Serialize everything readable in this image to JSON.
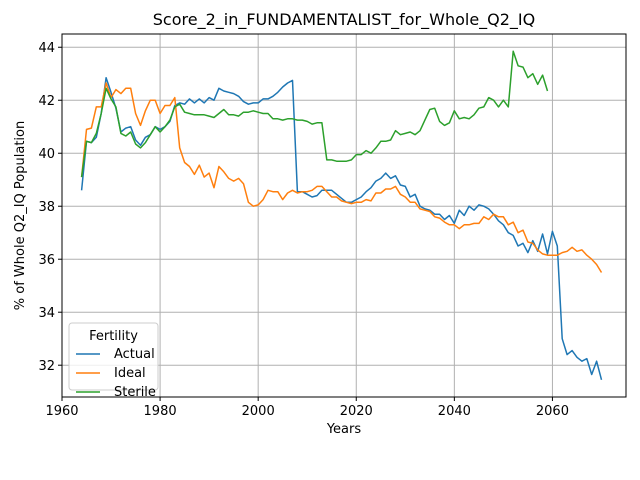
{
  "chart_data": {
    "type": "line",
    "title": "Score_2_in_FUNDAMENTALIST_for_Whole_Q2_IQ",
    "xlabel": "Years",
    "ylabel": "% of Whole Q2_IQ Population",
    "xlim": [
      1960,
      2075
    ],
    "ylim": [
      30.8,
      44.5
    ],
    "xticks": [
      1960,
      1980,
      2000,
      2020,
      2040,
      2060
    ],
    "yticks": [
      32,
      34,
      36,
      38,
      40,
      42,
      44
    ],
    "grid": true,
    "legend": {
      "title": "Fertility",
      "position": "lower-left"
    },
    "series": [
      {
        "name": "Actual",
        "color": "#1f77b4",
        "x": [
          1964,
          1965,
          1966,
          1967,
          1968,
          1969,
          1970,
          1971,
          1972,
          1973,
          1974,
          1975,
          1976,
          1977,
          1978,
          1979,
          1980,
          1981,
          1982,
          1983,
          1984,
          1985,
          1986,
          1987,
          1988,
          1989,
          1990,
          1991,
          1992,
          1993,
          1994,
          1995,
          1996,
          1997,
          1998,
          1999,
          2000,
          2001,
          2002,
          2003,
          2004,
          2005,
          2006,
          2007,
          2008,
          2009,
          2010,
          2011,
          2012,
          2013,
          2014,
          2015,
          2016,
          2017,
          2018,
          2019,
          2020,
          2021,
          2022,
          2023,
          2024,
          2025,
          2026,
          2027,
          2028,
          2029,
          2030,
          2031,
          2032,
          2033,
          2034,
          2035,
          2036,
          2037,
          2038,
          2039,
          2040,
          2041,
          2042,
          2043,
          2044,
          2045,
          2046,
          2047,
          2048,
          2049,
          2050,
          2051,
          2052,
          2053,
          2054,
          2055,
          2056,
          2057,
          2058,
          2059,
          2060,
          2061,
          2062,
          2063,
          2064,
          2065,
          2066,
          2067,
          2068,
          2069,
          2070
        ],
        "y": [
          38.6,
          40.45,
          40.4,
          40.6,
          41.5,
          42.85,
          42.3,
          41.7,
          40.8,
          40.95,
          41.0,
          40.5,
          40.3,
          40.6,
          40.7,
          41.0,
          40.9,
          41.0,
          41.2,
          41.8,
          41.9,
          41.85,
          42.05,
          41.9,
          42.05,
          41.9,
          42.1,
          42.0,
          42.45,
          42.35,
          42.3,
          42.25,
          42.15,
          41.95,
          41.85,
          41.9,
          41.9,
          42.05,
          42.05,
          42.15,
          42.3,
          42.5,
          42.65,
          42.75,
          38.55,
          38.55,
          38.45,
          38.35,
          38.4,
          38.6,
          38.6,
          38.6,
          38.45,
          38.3,
          38.15,
          38.15,
          38.25,
          38.35,
          38.55,
          38.7,
          38.95,
          39.05,
          39.25,
          39.05,
          39.15,
          38.8,
          38.75,
          38.35,
          38.45,
          38.0,
          37.9,
          37.85,
          37.7,
          37.7,
          37.5,
          37.65,
          37.35,
          37.85,
          37.65,
          38.0,
          37.85,
          38.05,
          38.0,
          37.9,
          37.7,
          37.45,
          37.3,
          37.0,
          36.9,
          36.5,
          36.6,
          36.25,
          36.7,
          36.3,
          36.95,
          36.2,
          37.05,
          36.5,
          33.0,
          32.4,
          32.55,
          32.3,
          32.15,
          32.25,
          31.65,
          32.15,
          31.45
        ]
      },
      {
        "name": "Ideal",
        "color": "#ff7f0e",
        "x": [
          1964,
          1965,
          1966,
          1967,
          1968,
          1969,
          1970,
          1971,
          1972,
          1973,
          1974,
          1975,
          1976,
          1977,
          1978,
          1979,
          1980,
          1981,
          1982,
          1983,
          1984,
          1985,
          1986,
          1987,
          1988,
          1989,
          1990,
          1991,
          1992,
          1993,
          1994,
          1995,
          1996,
          1997,
          1998,
          1999,
          2000,
          2001,
          2002,
          2003,
          2004,
          2005,
          2006,
          2007,
          2008,
          2009,
          2010,
          2011,
          2012,
          2013,
          2014,
          2015,
          2016,
          2017,
          2018,
          2019,
          2020,
          2021,
          2022,
          2023,
          2024,
          2025,
          2026,
          2027,
          2028,
          2029,
          2030,
          2031,
          2032,
          2033,
          2034,
          2035,
          2036,
          2037,
          2038,
          2039,
          2040,
          2041,
          2042,
          2043,
          2044,
          2045,
          2046,
          2047,
          2048,
          2049,
          2050,
          2051,
          2052,
          2053,
          2054,
          2055,
          2056,
          2057,
          2058,
          2059,
          2060,
          2061,
          2062,
          2063,
          2064,
          2065,
          2066,
          2067,
          2068,
          2069,
          2070
        ],
        "y": [
          39.1,
          40.9,
          40.95,
          41.75,
          41.75,
          42.65,
          42.1,
          42.4,
          42.25,
          42.45,
          42.45,
          41.5,
          41.05,
          41.6,
          42.0,
          42.0,
          41.5,
          41.8,
          41.8,
          42.1,
          40.2,
          39.65,
          39.5,
          39.2,
          39.55,
          39.1,
          39.25,
          38.7,
          39.5,
          39.3,
          39.05,
          38.95,
          39.05,
          38.85,
          38.15,
          38.0,
          38.05,
          38.25,
          38.6,
          38.55,
          38.55,
          38.25,
          38.5,
          38.6,
          38.5,
          38.55,
          38.55,
          38.6,
          38.75,
          38.75,
          38.55,
          38.35,
          38.35,
          38.2,
          38.15,
          38.1,
          38.15,
          38.15,
          38.25,
          38.2,
          38.5,
          38.5,
          38.65,
          38.65,
          38.75,
          38.45,
          38.35,
          38.15,
          38.15,
          37.9,
          37.85,
          37.8,
          37.6,
          37.55,
          37.4,
          37.3,
          37.3,
          37.15,
          37.3,
          37.3,
          37.35,
          37.35,
          37.6,
          37.5,
          37.7,
          37.6,
          37.6,
          37.3,
          37.4,
          37.0,
          37.1,
          36.65,
          36.6,
          36.35,
          36.2,
          36.15,
          36.15,
          36.15,
          36.25,
          36.3,
          36.45,
          36.3,
          36.35,
          36.15,
          36.0,
          35.8,
          35.5
        ]
      },
      {
        "name": "Sterile",
        "color": "#2ca02c",
        "x": [
          1964,
          1965,
          1966,
          1967,
          1968,
          1969,
          1970,
          1971,
          1972,
          1973,
          1974,
          1975,
          1976,
          1977,
          1978,
          1979,
          1980,
          1981,
          1982,
          1983,
          1984,
          1985,
          1986,
          1987,
          1988,
          1989,
          1990,
          1991,
          1992,
          1993,
          1994,
          1995,
          1996,
          1997,
          1998,
          1999,
          2000,
          2001,
          2002,
          2003,
          2004,
          2005,
          2006,
          2007,
          2008,
          2009,
          2010,
          2011,
          2012,
          2013,
          2014,
          2015,
          2016,
          2017,
          2018,
          2019,
          2020,
          2021,
          2022,
          2023,
          2024,
          2025,
          2026,
          2027,
          2028,
          2029,
          2030,
          2031,
          2032,
          2033,
          2034,
          2035,
          2036,
          2037,
          2038,
          2039,
          2040,
          2041,
          2042,
          2043,
          2044,
          2045,
          2046,
          2047,
          2048,
          2049,
          2050,
          2051,
          2052,
          2053,
          2054,
          2055,
          2056,
          2057,
          2058,
          2059
        ],
        "y": [
          39.1,
          40.45,
          40.4,
          40.75,
          41.5,
          42.45,
          42.05,
          41.75,
          40.75,
          40.65,
          40.8,
          40.35,
          40.2,
          40.4,
          40.7,
          41.0,
          40.8,
          41.0,
          41.25,
          41.75,
          41.85,
          41.55,
          41.5,
          41.45,
          41.45,
          41.45,
          41.4,
          41.35,
          41.5,
          41.65,
          41.45,
          41.45,
          41.4,
          41.55,
          41.55,
          41.6,
          41.55,
          41.5,
          41.5,
          41.3,
          41.3,
          41.25,
          41.3,
          41.3,
          41.25,
          41.25,
          41.2,
          41.1,
          41.15,
          41.15,
          39.75,
          39.75,
          39.7,
          39.7,
          39.7,
          39.75,
          39.95,
          39.95,
          40.1,
          40.0,
          40.2,
          40.45,
          40.45,
          40.5,
          40.85,
          40.7,
          40.75,
          40.8,
          40.7,
          40.85,
          41.25,
          41.65,
          41.7,
          41.2,
          41.05,
          41.15,
          41.6,
          41.3,
          41.35,
          41.3,
          41.45,
          41.7,
          41.75,
          42.1,
          42.0,
          41.75,
          42.0,
          41.75,
          43.85,
          43.3,
          43.25,
          42.85,
          43.0,
          42.6,
          42.95,
          42.35
        ]
      }
    ]
  }
}
